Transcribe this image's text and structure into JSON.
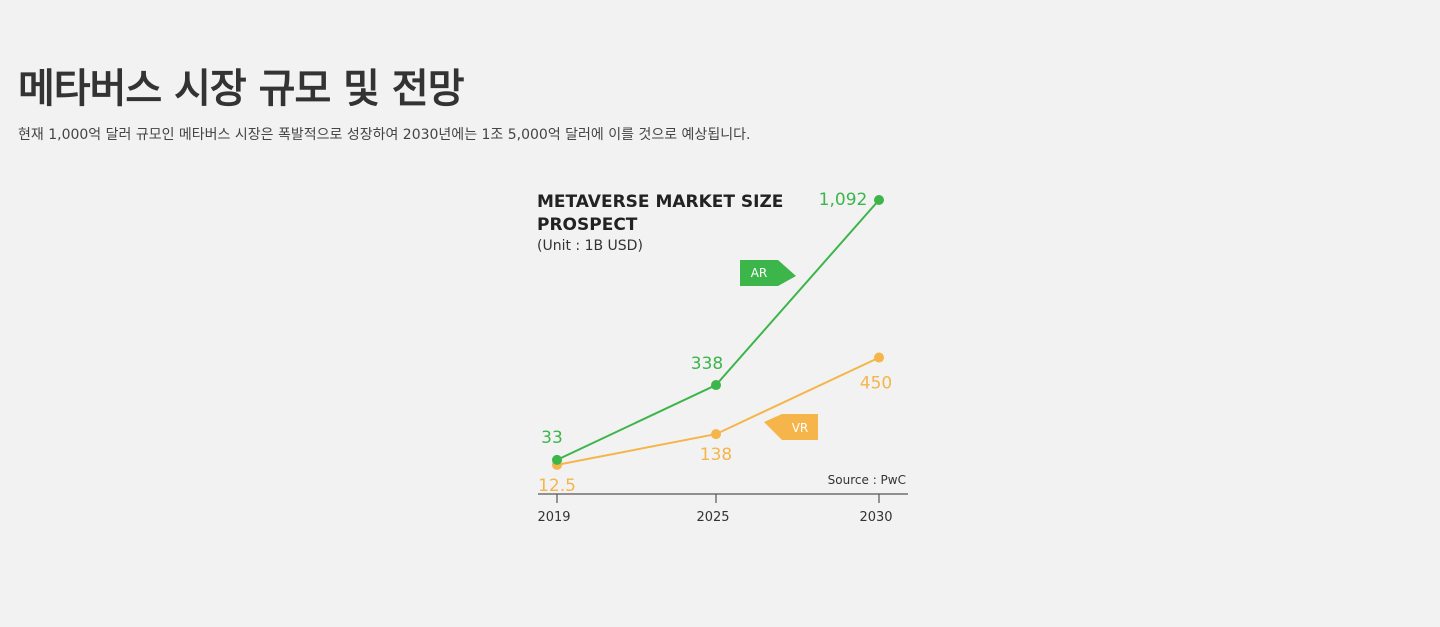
{
  "page": {
    "title": "메타버스 시장 규모 및 전망",
    "description": "현재 1,000억 달러 규모인 메타버스 시장은 폭발적으로 성장하여 2030년에는 1조 5,000억 달러에 이를 것으로 예상됩니다."
  },
  "chart_data": {
    "type": "line",
    "title_lines": [
      "METAVERSE MARKET SIZE",
      "PROSPECT"
    ],
    "unit": "(Unit : 1B USD)",
    "source": "Source : PwC",
    "categories": [
      "2019",
      "2025",
      "2030"
    ],
    "ylim": [
      0,
      1092
    ],
    "grid": false,
    "series": [
      {
        "name": "AR",
        "values": [
          33,
          338,
          1092
        ],
        "value_labels": [
          "33",
          "338",
          "1,092"
        ],
        "color": "#3cb54a"
      },
      {
        "name": "VR",
        "values": [
          12.5,
          138,
          450
        ],
        "value_labels": [
          "12.5",
          "138",
          "450"
        ],
        "color": "#f5b54a"
      }
    ]
  }
}
